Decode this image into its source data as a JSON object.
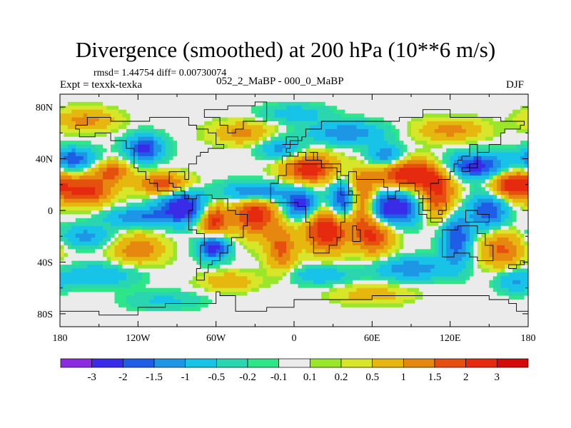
{
  "header": {
    "title": "Divergence (smoothed) at 200 hPa (10**6 m/s)",
    "stats": "rmsd= 1.44754 diff= 0.00730074",
    "expt": "Expt = texxk-texka",
    "subtitle": "052_2_MaBP - 000_0_MaBP",
    "season": "DJF"
  },
  "chart_data": {
    "type": "heatmap",
    "title": "Divergence (smoothed) at 200 hPa (10**6 m/s)",
    "xlabel": "",
    "ylabel": "",
    "xlim": [
      -180,
      180
    ],
    "ylim": [
      -90,
      90
    ],
    "x_ticks": [
      {
        "value": -180,
        "label": "180"
      },
      {
        "value": -120,
        "label": "120W"
      },
      {
        "value": -60,
        "label": "60W"
      },
      {
        "value": 0,
        "label": "0"
      },
      {
        "value": 60,
        "label": "60E"
      },
      {
        "value": 120,
        "label": "120E"
      },
      {
        "value": 180,
        "label": "180"
      }
    ],
    "y_ticks": [
      {
        "value": 80,
        "label": "80N"
      },
      {
        "value": 40,
        "label": "40N"
      },
      {
        "value": 0,
        "label": "0"
      },
      {
        "value": -40,
        "label": "40S"
      },
      {
        "value": -80,
        "label": "80S"
      }
    ],
    "levels": [
      -3,
      -2,
      -1.5,
      -1,
      -0.5,
      -0.2,
      -0.1,
      0.1,
      0.2,
      0.5,
      1,
      1.5,
      2,
      3
    ],
    "colorbar_labels": [
      "-3",
      "-2",
      "-1.5",
      "-1",
      "-0.5",
      "-0.2",
      "-0.1",
      "0.1",
      "0.2",
      "0.5",
      "1",
      "1.5",
      "2",
      "3"
    ],
    "colors": [
      "#8a2be2",
      "#3a2be8",
      "#1e5ee6",
      "#1e96e6",
      "#17c3e6",
      "#2ad6b0",
      "#2ee68a",
      "#ebebeb",
      "#9ae62a",
      "#d8e62a",
      "#e6b80f",
      "#e6870f",
      "#e6500f",
      "#e62a0f",
      "#d40a0a"
    ],
    "features": [
      {
        "lon": -85,
        "lat": 3,
        "value": -2.6,
        "sx": 14,
        "sy": 9
      },
      {
        "lon": -62,
        "lat": -8,
        "value": 2.4,
        "sx": 8,
        "sy": 10
      },
      {
        "lon": -62,
        "lat": -28,
        "value": -2.6,
        "sx": 8,
        "sy": 7
      },
      {
        "lon": -30,
        "lat": -2,
        "value": 2.4,
        "sx": 12,
        "sy": 12
      },
      {
        "lon": -30,
        "lat": 14,
        "value": -2.2,
        "sx": 16,
        "sy": 6
      },
      {
        "lon": -10,
        "lat": -30,
        "value": 1.6,
        "sx": 8,
        "sy": 12
      },
      {
        "lon": 5,
        "lat": 5,
        "value": -2.4,
        "sx": 9,
        "sy": 8
      },
      {
        "lon": 12,
        "lat": 32,
        "value": 2.4,
        "sx": 14,
        "sy": 8
      },
      {
        "lon": 25,
        "lat": -15,
        "value": 2.6,
        "sx": 12,
        "sy": 12
      },
      {
        "lon": 38,
        "lat": 8,
        "value": -2.4,
        "sx": 8,
        "sy": 10
      },
      {
        "lon": 52,
        "lat": 6,
        "value": 2.4,
        "sx": 8,
        "sy": 14
      },
      {
        "lon": 62,
        "lat": -20,
        "value": 2.0,
        "sx": 10,
        "sy": 10
      },
      {
        "lon": 75,
        "lat": 2,
        "value": -2.8,
        "sx": 16,
        "sy": 9
      },
      {
        "lon": 90,
        "lat": 28,
        "value": 2.6,
        "sx": 20,
        "sy": 8
      },
      {
        "lon": 110,
        "lat": 10,
        "value": 2.0,
        "sx": 10,
        "sy": 12
      },
      {
        "lon": 140,
        "lat": 34,
        "value": -2.4,
        "sx": 18,
        "sy": 7
      },
      {
        "lon": 168,
        "lat": 20,
        "value": 2.6,
        "sx": 12,
        "sy": 8
      },
      {
        "lon": 150,
        "lat": 0,
        "value": -2.0,
        "sx": 10,
        "sy": 10
      },
      {
        "lon": 125,
        "lat": -22,
        "value": -2.0,
        "sx": 8,
        "sy": 14
      },
      {
        "lon": 160,
        "lat": -30,
        "value": 1.6,
        "sx": 12,
        "sy": 10
      },
      {
        "lon": -170,
        "lat": 40,
        "value": -1.8,
        "sx": 12,
        "sy": 6
      },
      {
        "lon": -160,
        "lat": 15,
        "value": 2.2,
        "sx": 14,
        "sy": 8
      },
      {
        "lon": -140,
        "lat": 30,
        "value": 1.6,
        "sx": 10,
        "sy": 6
      },
      {
        "lon": -115,
        "lat": 48,
        "value": -2.2,
        "sx": 10,
        "sy": 7
      },
      {
        "lon": -100,
        "lat": 20,
        "value": 2.0,
        "sx": 14,
        "sy": 6
      },
      {
        "lon": -120,
        "lat": -5,
        "value": -1.4,
        "sx": 18,
        "sy": 5
      },
      {
        "lon": -120,
        "lat": -30,
        "value": 1.4,
        "sx": 14,
        "sy": 8
      },
      {
        "lon": -160,
        "lat": -20,
        "value": -1.2,
        "sx": 14,
        "sy": 6
      },
      {
        "lon": -150,
        "lat": -50,
        "value": -1.0,
        "sx": 20,
        "sy": 6
      },
      {
        "lon": -40,
        "lat": 60,
        "value": 1.2,
        "sx": 16,
        "sy": 6
      },
      {
        "lon": -10,
        "lat": 48,
        "value": -1.2,
        "sx": 12,
        "sy": 6
      },
      {
        "lon": 40,
        "lat": 60,
        "value": -1.4,
        "sx": 20,
        "sy": 6
      },
      {
        "lon": 70,
        "lat": 42,
        "value": -1.6,
        "sx": 10,
        "sy": 6
      },
      {
        "lon": 120,
        "lat": 62,
        "value": 1.2,
        "sx": 18,
        "sy": 6
      },
      {
        "lon": -160,
        "lat": 70,
        "value": 1.2,
        "sx": 16,
        "sy": 6
      },
      {
        "lon": 90,
        "lat": -45,
        "value": -1.4,
        "sx": 20,
        "sy": 6
      },
      {
        "lon": 20,
        "lat": -50,
        "value": -1.0,
        "sx": 16,
        "sy": 5
      },
      {
        "lon": -50,
        "lat": -55,
        "value": 1.0,
        "sx": 14,
        "sy": 5
      },
      {
        "lon": 60,
        "lat": -65,
        "value": 0.8,
        "sx": 20,
        "sy": 5
      },
      {
        "lon": -100,
        "lat": -70,
        "value": -0.6,
        "sx": 20,
        "sy": 5
      },
      {
        "lon": 170,
        "lat": -55,
        "value": -1.0,
        "sx": 10,
        "sy": 6
      },
      {
        "lon": 0,
        "lat": 75,
        "value": -0.8,
        "sx": 18,
        "sy": 5
      }
    ]
  }
}
